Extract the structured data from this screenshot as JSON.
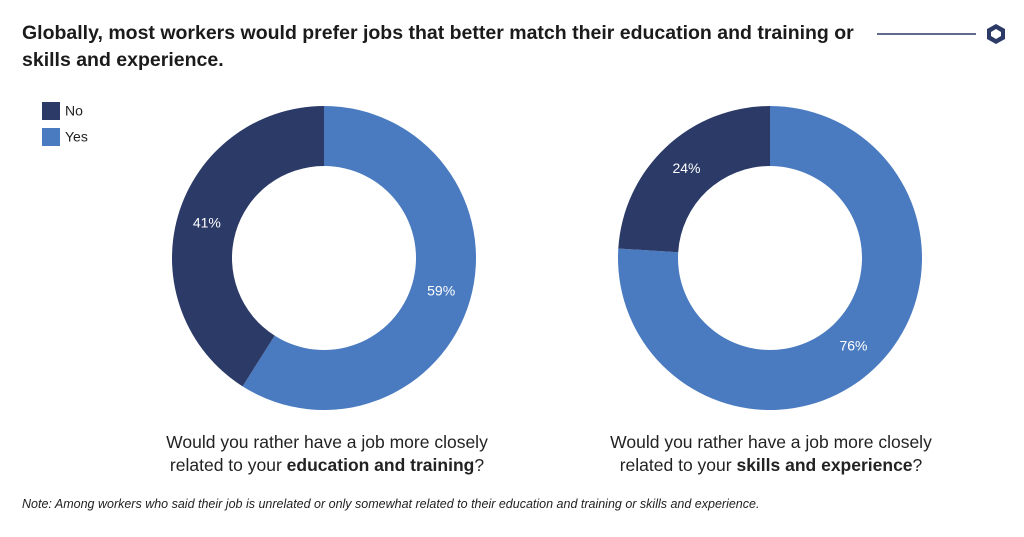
{
  "title": "Globally, most workers would prefer jobs that better match their education and training or skills and experience.",
  "note": "Note: Among workers who said their job is unrelated or only somewhat related to their education and training or skills and experience.",
  "chart_data": [
    {
      "type": "donut",
      "categories": [
        "No",
        "Yes"
      ],
      "values": [
        41,
        59
      ],
      "value_labels": [
        "41%",
        "59%"
      ],
      "colors": [
        "#2b3a67",
        "#4a7bc0"
      ],
      "question": [
        "Would you rather have a job more closely",
        "related to your",
        "education and training",
        "?"
      ]
    },
    {
      "type": "donut",
      "categories": [
        "No",
        "Yes"
      ],
      "values": [
        24,
        76
      ],
      "value_labels": [
        "24%",
        "76%"
      ],
      "colors": [
        "#2b3a67",
        "#4a7bc0"
      ],
      "question": [
        "Would you rather have a job more closely",
        "related to your",
        "skills and experience",
        "?"
      ]
    }
  ]
}
